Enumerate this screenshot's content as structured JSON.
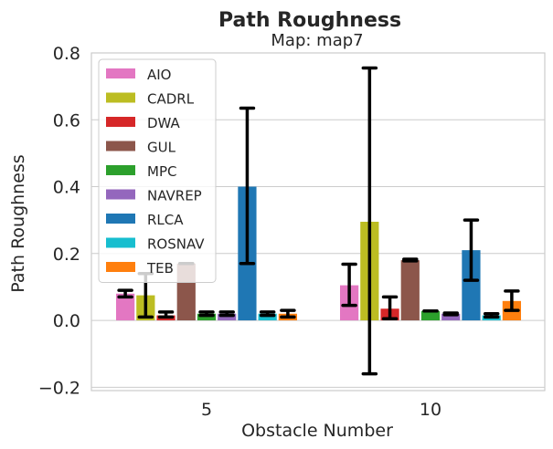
{
  "chart_data": {
    "type": "bar",
    "title": "Path Roughness",
    "subtitle": "Map: map7",
    "xlabel": "Obstacle Number",
    "ylabel": "Path Roughness",
    "categories": [
      "5",
      "10"
    ],
    "ylim": [
      -0.21,
      0.8
    ],
    "yticks": [
      -0.2,
      0.0,
      0.2,
      0.4,
      0.6,
      0.8
    ],
    "ytick_labels": [
      "−0.2",
      "0.0",
      "0.2",
      "0.4",
      "0.6",
      "0.8"
    ],
    "grid": true,
    "legend_position": "top-left",
    "series": [
      {
        "name": "AIO",
        "color": "#e377c2",
        "values": [
          0.08,
          0.105
        ],
        "err_low": [
          0.07,
          0.045
        ],
        "err_high": [
          0.09,
          0.168
        ]
      },
      {
        "name": "CADRL",
        "color": "#bcbd22",
        "values": [
          0.075,
          0.295
        ],
        "err_low": [
          0.01,
          -0.16
        ],
        "err_high": [
          0.14,
          0.755
        ]
      },
      {
        "name": "DWA",
        "color": "#d62728",
        "values": [
          0.015,
          0.035
        ],
        "err_low": [
          0.01,
          0.005
        ],
        "err_high": [
          0.025,
          0.07
        ]
      },
      {
        "name": "GUL",
        "color": "#8c564b",
        "values": [
          0.17,
          0.18
        ],
        "err_low": [
          0.17,
          0.178
        ],
        "err_high": [
          0.17,
          0.183
        ]
      },
      {
        "name": "MPC",
        "color": "#2ca02c",
        "values": [
          0.02,
          0.028
        ],
        "err_low": [
          0.015,
          0.028
        ],
        "err_high": [
          0.025,
          0.028
        ]
      },
      {
        "name": "NAVREP",
        "color": "#9467bd",
        "values": [
          0.02,
          0.02
        ],
        "err_low": [
          0.015,
          0.017
        ],
        "err_high": [
          0.025,
          0.022
        ]
      },
      {
        "name": "RLCA",
        "color": "#1f77b4",
        "values": [
          0.4,
          0.21
        ],
        "err_low": [
          0.17,
          0.12
        ],
        "err_high": [
          0.635,
          0.3
        ]
      },
      {
        "name": "ROSNAV",
        "color": "#17becf",
        "values": [
          0.02,
          0.015
        ],
        "err_low": [
          0.015,
          0.01
        ],
        "err_high": [
          0.025,
          0.02
        ]
      },
      {
        "name": "TEB",
        "color": "#ff7f0e",
        "values": [
          0.02,
          0.058
        ],
        "err_low": [
          0.01,
          0.03
        ],
        "err_high": [
          0.03,
          0.088
        ]
      }
    ]
  }
}
